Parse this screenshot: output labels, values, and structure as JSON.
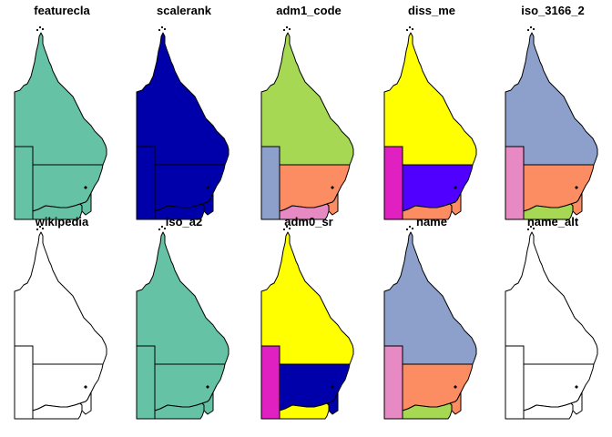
{
  "panels": [
    {
      "title": "featurecla",
      "fills": [
        "#66C2A5",
        "#66C2A5",
        "#66C2A5",
        "#66C2A5",
        "#66C2A5"
      ]
    },
    {
      "title": "scalerank",
      "fills": [
        "#0000AA",
        "#0000AA",
        "#0000AA",
        "#0000AA",
        "#0000AA"
      ]
    },
    {
      "title": "adm1_code",
      "fills": [
        "#A6D854",
        "#8DA0CB",
        "#FC8D62",
        "#E78AC3",
        "#FC8D62"
      ]
    },
    {
      "title": "diss_me",
      "fills": [
        "#FFFF00",
        "#E020C0",
        "#5000FF",
        "#FC8D62",
        "#FC8D62"
      ]
    },
    {
      "title": "iso_3166_2",
      "fills": [
        "#8DA0CB",
        "#E78AC3",
        "#FC8D62",
        "#A6D854",
        "#FC8D62"
      ]
    },
    {
      "title": "wikipedia",
      "fills": [
        "#FFFFFF",
        "#FFFFFF",
        "#FFFFFF",
        "#FFFFFF",
        "#FFFFFF"
      ]
    },
    {
      "title": "iso_a2",
      "fills": [
        "#66C2A5",
        "#66C2A5",
        "#66C2A5",
        "#66C2A5",
        "#66C2A5"
      ]
    },
    {
      "title": "adm0_sr",
      "fills": [
        "#FFFF00",
        "#E020C0",
        "#0000AA",
        "#FFFF00",
        "#0000AA"
      ]
    },
    {
      "title": "name",
      "fills": [
        "#8DA0CB",
        "#E78AC3",
        "#FC8D62",
        "#A6D854",
        "#FC8D62"
      ]
    },
    {
      "title": "name_alt",
      "fills": [
        "#FFFFFF",
        "#FFFFFF",
        "#FFFFFF",
        "#FFFFFF",
        "#FFFFFF"
      ]
    }
  ]
}
